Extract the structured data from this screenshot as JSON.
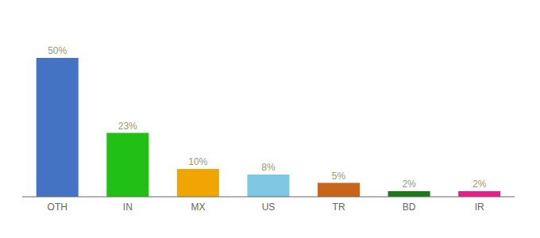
{
  "chart_data": {
    "type": "bar",
    "categories": [
      "OTH",
      "IN",
      "MX",
      "US",
      "TR",
      "BD",
      "IR"
    ],
    "values": [
      50,
      23,
      10,
      8,
      5,
      2,
      2
    ],
    "value_labels": [
      "50%",
      "23%",
      "10%",
      "8%",
      "5%",
      "2%",
      "2%"
    ],
    "colors": [
      "#4472c4",
      "#22c014",
      "#f0a500",
      "#7ec8e3",
      "#c8651a",
      "#1a7a1a",
      "#e91e8c"
    ],
    "ylim": [
      0,
      60
    ],
    "data_labels": true,
    "tick_labels": "x",
    "grid": false
  }
}
